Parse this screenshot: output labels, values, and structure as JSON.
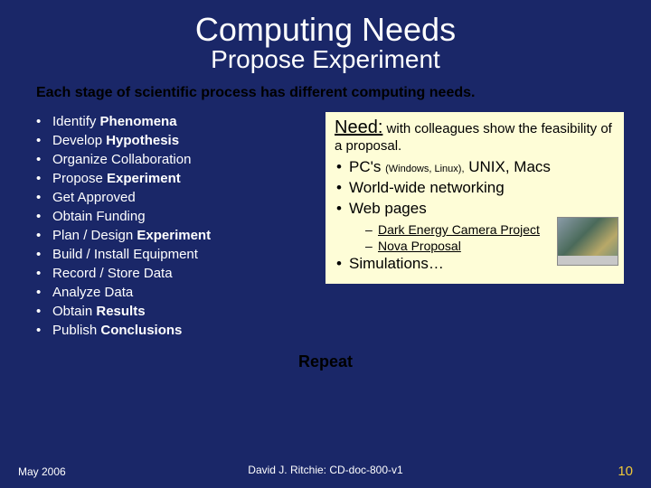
{
  "title": "Computing Needs",
  "subtitle": "Propose Experiment",
  "intro": "Each stage of scientific process has different computing needs.",
  "stages": [
    {
      "pre": "Identify ",
      "bold": "Phenomena"
    },
    {
      "pre": "Develop ",
      "bold": "Hypothesis"
    },
    {
      "pre": "Organize Collaboration",
      "bold": ""
    },
    {
      "pre": "Propose ",
      "bold": "Experiment"
    },
    {
      "pre": "Get Approved",
      "bold": ""
    },
    {
      "pre": "Obtain Funding",
      "bold": ""
    },
    {
      "pre": "Plan / Design ",
      "bold": "Experiment"
    },
    {
      "pre": "Build / Install Equipment",
      "bold": ""
    },
    {
      "pre": "Record / Store Data",
      "bold": ""
    },
    {
      "pre": "Analyze Data",
      "bold": ""
    },
    {
      "pre": "Obtain ",
      "bold": "Results"
    },
    {
      "pre": "Publish ",
      "bold": "Conclusions"
    }
  ],
  "need": {
    "label": "Need:",
    "intro": " with colleagues show the feasibility of a proposal.",
    "items": {
      "pcs_pre": "PC's ",
      "pcs_small": "(Windows, Linux),",
      "pcs_post": " UNIX, Macs",
      "net": "World-wide networking",
      "web": "Web pages",
      "sub1": "Dark Energy Camera Project",
      "sub2": "Nova Proposal",
      "sim": "Simulations…"
    }
  },
  "repeat": "Repeat",
  "footer": {
    "left": "May 2006",
    "center": "David J. Ritchie: CD-doc-800-v1",
    "page": "10"
  },
  "colors": {
    "background": "#1a2768",
    "box_bg": "#fefdd7",
    "page_num": "#f0c838",
    "dark_text": "#000000",
    "light_text": "#ffffff"
  }
}
